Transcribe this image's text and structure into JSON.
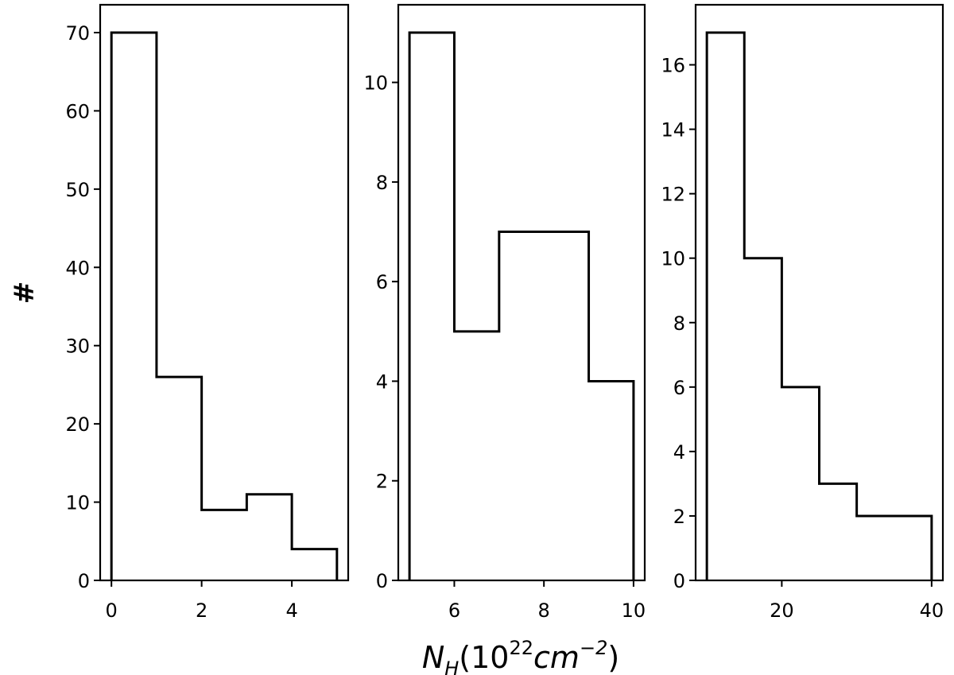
{
  "figure": {
    "ylabel": "#",
    "xlabel": "N_H(10^22 cm^-2)",
    "xlabel_parts": {
      "symbol": "N",
      "symbol_sub": "H",
      "open": "(10",
      "exp1": "22",
      "unit": "cm",
      "exp2": "−2",
      "close": ")"
    }
  },
  "chart_data": [
    {
      "type": "bar",
      "style": "step-histogram",
      "bin_edges": [
        0,
        1,
        2,
        3,
        4,
        5
      ],
      "values": [
        70,
        26,
        9,
        11,
        4
      ],
      "xlim": [
        -0.25,
        5.25
      ],
      "ylim": [
        0,
        70
      ],
      "xticks": [
        0,
        2,
        4
      ],
      "yticks": [
        0,
        10,
        20,
        30,
        40,
        50,
        60,
        70
      ],
      "line_color": "#000000"
    },
    {
      "type": "bar",
      "style": "step-histogram",
      "bin_edges": [
        5,
        6,
        7,
        8,
        9,
        10
      ],
      "values": [
        11,
        5,
        7,
        7,
        4
      ],
      "xlim": [
        4.75,
        10.25
      ],
      "ylim": [
        0,
        11
      ],
      "xticks": [
        6,
        8,
        10
      ],
      "yticks": [
        0,
        2,
        4,
        6,
        8,
        10
      ],
      "line_color": "#000000"
    },
    {
      "type": "bar",
      "style": "step-histogram",
      "bin_edges": [
        10,
        15,
        20,
        25,
        30,
        40
      ],
      "values": [
        17,
        10,
        6,
        3,
        2
      ],
      "xlim": [
        8.5,
        41.5
      ],
      "ylim": [
        0,
        17
      ],
      "xticks": [
        20,
        40
      ],
      "yticks": [
        0,
        2,
        4,
        6,
        8,
        10,
        12,
        14,
        16
      ],
      "line_color": "#000000"
    }
  ]
}
